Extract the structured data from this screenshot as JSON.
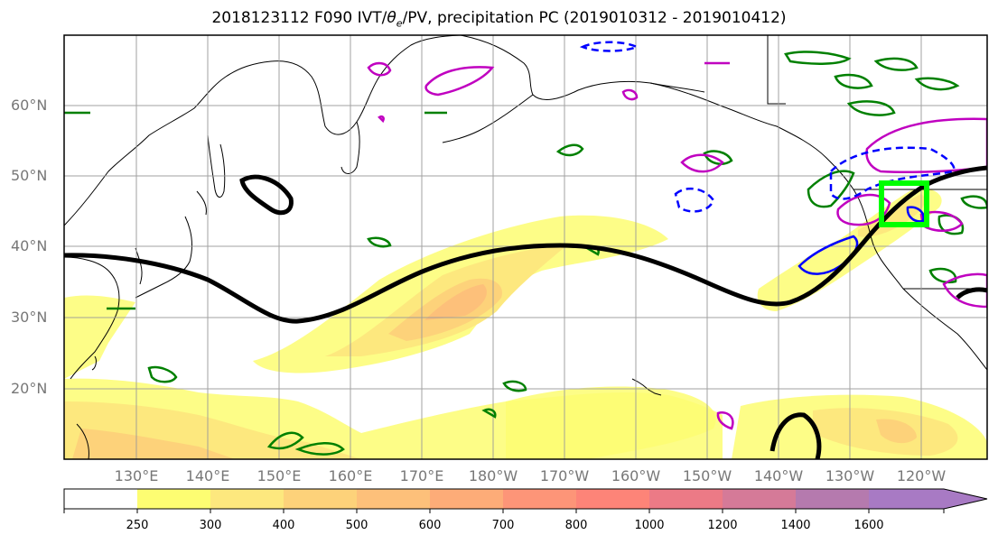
{
  "title_prefix": "2018123112 F090 IVT/",
  "title_theta": "θ",
  "title_sub": "e",
  "title_suffix": "/PV, precipitation PC (2019010312 - 2019010412)",
  "lat_labels": [
    "60°N",
    "50°N",
    "40°N",
    "30°N",
    "20°N"
  ],
  "lon_labels": [
    "130°E",
    "140°E",
    "150°E",
    "160°E",
    "170°E",
    "180°W",
    "170°W",
    "160°W",
    "150°W",
    "140°W",
    "130°W",
    "120°W"
  ],
  "colorbar": {
    "ticks": [
      "250",
      "300",
      "400",
      "500",
      "600",
      "700",
      "800",
      "1000",
      "1200",
      "1400",
      "1600"
    ],
    "colors": [
      "#ffffff",
      "#fdfd72",
      "#fde87e",
      "#fdd27a",
      "#fdc07a",
      "#fdac78",
      "#fd9578",
      "#fd8478",
      "#ec7a86",
      "#d57a98",
      "#b57aae",
      "#a87ac4"
    ]
  },
  "colors": {
    "theta_e": "#008000",
    "pv_positive": "#c000c0",
    "pv_negative": "#0000ff",
    "jet": "#000000",
    "highlight_box": "#00ff00",
    "grid": "#999999"
  }
}
